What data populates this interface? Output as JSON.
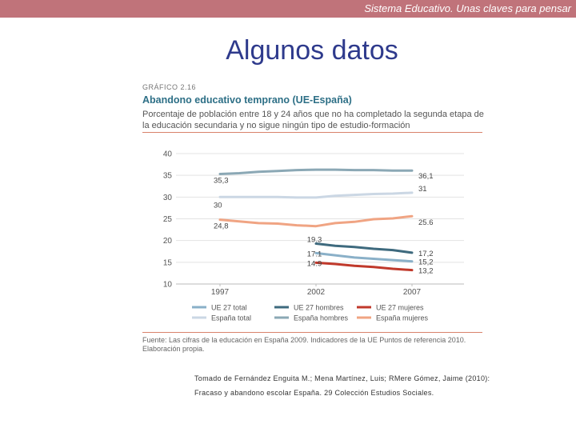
{
  "header": {
    "tagline": "Sistema Educativo. Unas claves para pensar"
  },
  "slide": {
    "title": "Algunos datos"
  },
  "figure": {
    "label": "GRÁFICO 2.16",
    "title": "Abandono educativo temprano (UE-España)",
    "subtitle": "Porcentaje de población entre 18 y 24 años que no ha completado la segunda etapa de la educación secundaria y no sigue ningún tipo de estudio-formación",
    "source": "Fuente: Las cifras de la educación en España 2009. Indicadores de la UE Puntos de referencia 2010. Elaboración propia."
  },
  "credit": {
    "line1": "Tomado de Fernández Enguita M.; Mena Martínez, Luis; RMere Gómez, Jaime (2010):",
    "line2": "Fracaso y abandono escolar España. 29 Colección Estudios Sociales."
  },
  "colors": {
    "topbar": "#c0737a",
    "title": "#2e3a8c",
    "figure_title": "#2d6f86"
  },
  "chart_data": {
    "type": "line",
    "x": [
      1997,
      1998,
      1999,
      2000,
      2001,
      2002,
      2003,
      2004,
      2005,
      2006,
      2007
    ],
    "xticks": [
      "1997",
      "2002",
      "2007"
    ],
    "ylim": [
      10,
      40
    ],
    "yticks": [
      10,
      15,
      20,
      25,
      30,
      35,
      40
    ],
    "ytick_labels": [
      "10",
      "15",
      "20",
      "25",
      "30",
      "35",
      "40"
    ],
    "grid": true,
    "legend_position": "bottom",
    "series": [
      {
        "name": "UE 27 total",
        "color": "#8ab0c8",
        "x": [
          2002,
          2003,
          2004,
          2005,
          2006,
          2007
        ],
        "values": [
          17.1,
          16.6,
          16.1,
          15.8,
          15.5,
          15.2
        ],
        "labels": [
          "17.1",
          "15,2"
        ]
      },
      {
        "name": "España total",
        "color": "#cbd7e4",
        "x": [
          1997,
          1998,
          1999,
          2000,
          2001,
          2002,
          2003,
          2004,
          2005,
          2006,
          2007
        ],
        "values": [
          30,
          30,
          30,
          30,
          29.9,
          29.9,
          30.3,
          30.5,
          30.7,
          30.8,
          31
        ],
        "labels": [
          "30",
          "31"
        ]
      },
      {
        "name": "UE 27 hombres",
        "color": "#3e6a7e",
        "x": [
          2002,
          2003,
          2004,
          2005,
          2006,
          2007
        ],
        "values": [
          19.3,
          18.8,
          18.5,
          18.1,
          17.8,
          17.2
        ],
        "labels": [
          "19.3",
          "17,2"
        ]
      },
      {
        "name": "España hombres",
        "color": "#8ba8b5",
        "x": [
          1997,
          1998,
          1999,
          2000,
          2001,
          2002,
          2003,
          2004,
          2005,
          2006,
          2007
        ],
        "values": [
          35.3,
          35.5,
          35.8,
          36,
          36.2,
          36.3,
          36.3,
          36.2,
          36.2,
          36.1,
          36.1
        ],
        "labels": [
          "35,3",
          "36,1"
        ]
      },
      {
        "name": "UE 27 mujeres",
        "color": "#c0392b",
        "x": [
          2002,
          2003,
          2004,
          2005,
          2006,
          2007
        ],
        "values": [
          14.9,
          14.6,
          14.2,
          13.9,
          13.5,
          13.2
        ],
        "labels": [
          "14.9",
          "13,2"
        ]
      },
      {
        "name": "España mujeres",
        "color": "#f0a483",
        "x": [
          1997,
          1998,
          1999,
          2000,
          2001,
          2002,
          2003,
          2004,
          2005,
          2006,
          2007
        ],
        "values": [
          24.8,
          24.4,
          24,
          23.9,
          23.5,
          23.3,
          24,
          24.3,
          24.9,
          25.1,
          25.6
        ],
        "labels": [
          "24,8",
          "25.6"
        ]
      }
    ]
  }
}
